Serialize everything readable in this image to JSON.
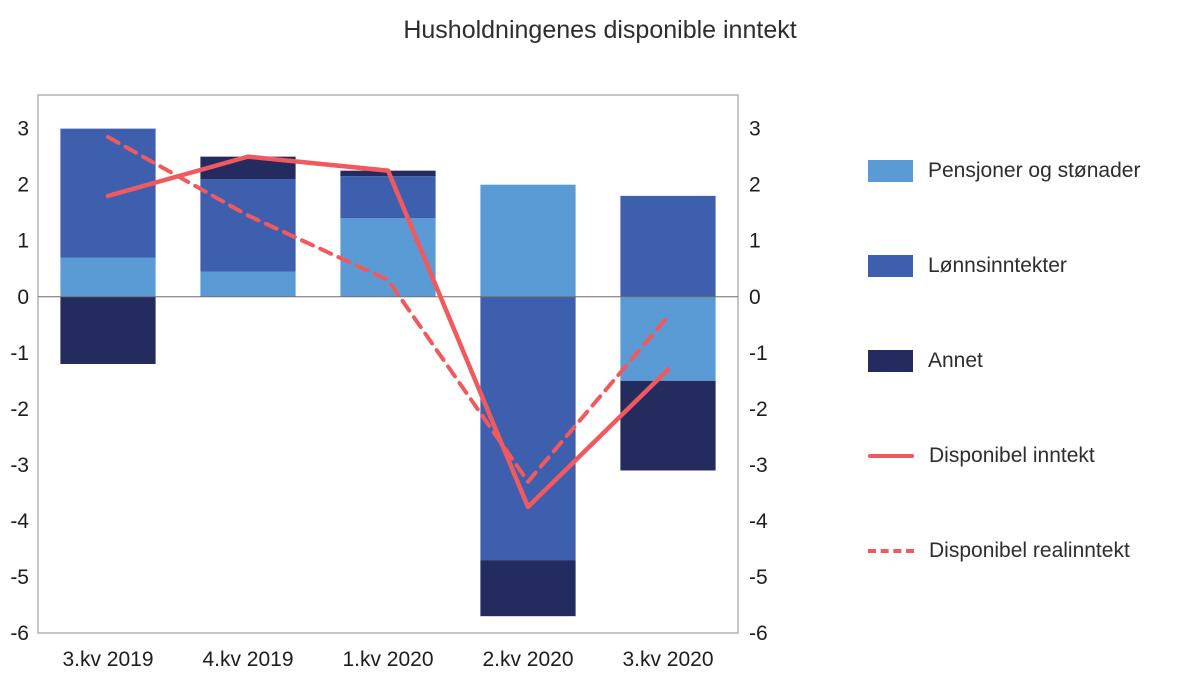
{
  "colors": {
    "pensjoner": "#5b9bd5",
    "lonn": "#3e5fae",
    "annet": "#242b5e",
    "line": "#f05a5f",
    "frame": "#a8a8a8",
    "zero_line": "#6f6f6f",
    "text": "#1d1d1d"
  },
  "chart_data": {
    "type": "bar",
    "stacked": true,
    "title": "Husholdningenes disponible inntekt",
    "categories": [
      "3.kv 2019",
      "4.kv 2019",
      "1.kv 2020",
      "2.kv 2020",
      "3.kv 2020"
    ],
    "bar_series": [
      {
        "name": "Pensjoner og stønader",
        "color_key": "pensjoner",
        "values": [
          0.7,
          0.45,
          1.4,
          2.0,
          -1.5
        ]
      },
      {
        "name": "Lønnsinntekter",
        "color_key": "lonn",
        "values": [
          2.3,
          1.65,
          0.75,
          -4.7,
          1.8
        ]
      },
      {
        "name": "Annet",
        "color_key": "annet",
        "values": [
          -1.2,
          0.4,
          0.1,
          -1.0,
          -1.6
        ]
      }
    ],
    "line_series": [
      {
        "name": "Disponibel inntekt",
        "dash": false,
        "values": [
          1.8,
          2.5,
          2.25,
          -3.75,
          -1.3
        ]
      },
      {
        "name": "Disponibel realinntekt",
        "dash": true,
        "values": [
          2.85,
          1.45,
          0.3,
          -3.3,
          -0.35
        ]
      }
    ],
    "yticks": [
      3,
      2,
      1,
      0,
      -1,
      -2,
      -3,
      -4,
      -5,
      -6
    ],
    "ylim": [
      -6,
      3.6
    ],
    "grid": false,
    "legend_position": "right",
    "y_axis_labels": "both-sides"
  }
}
